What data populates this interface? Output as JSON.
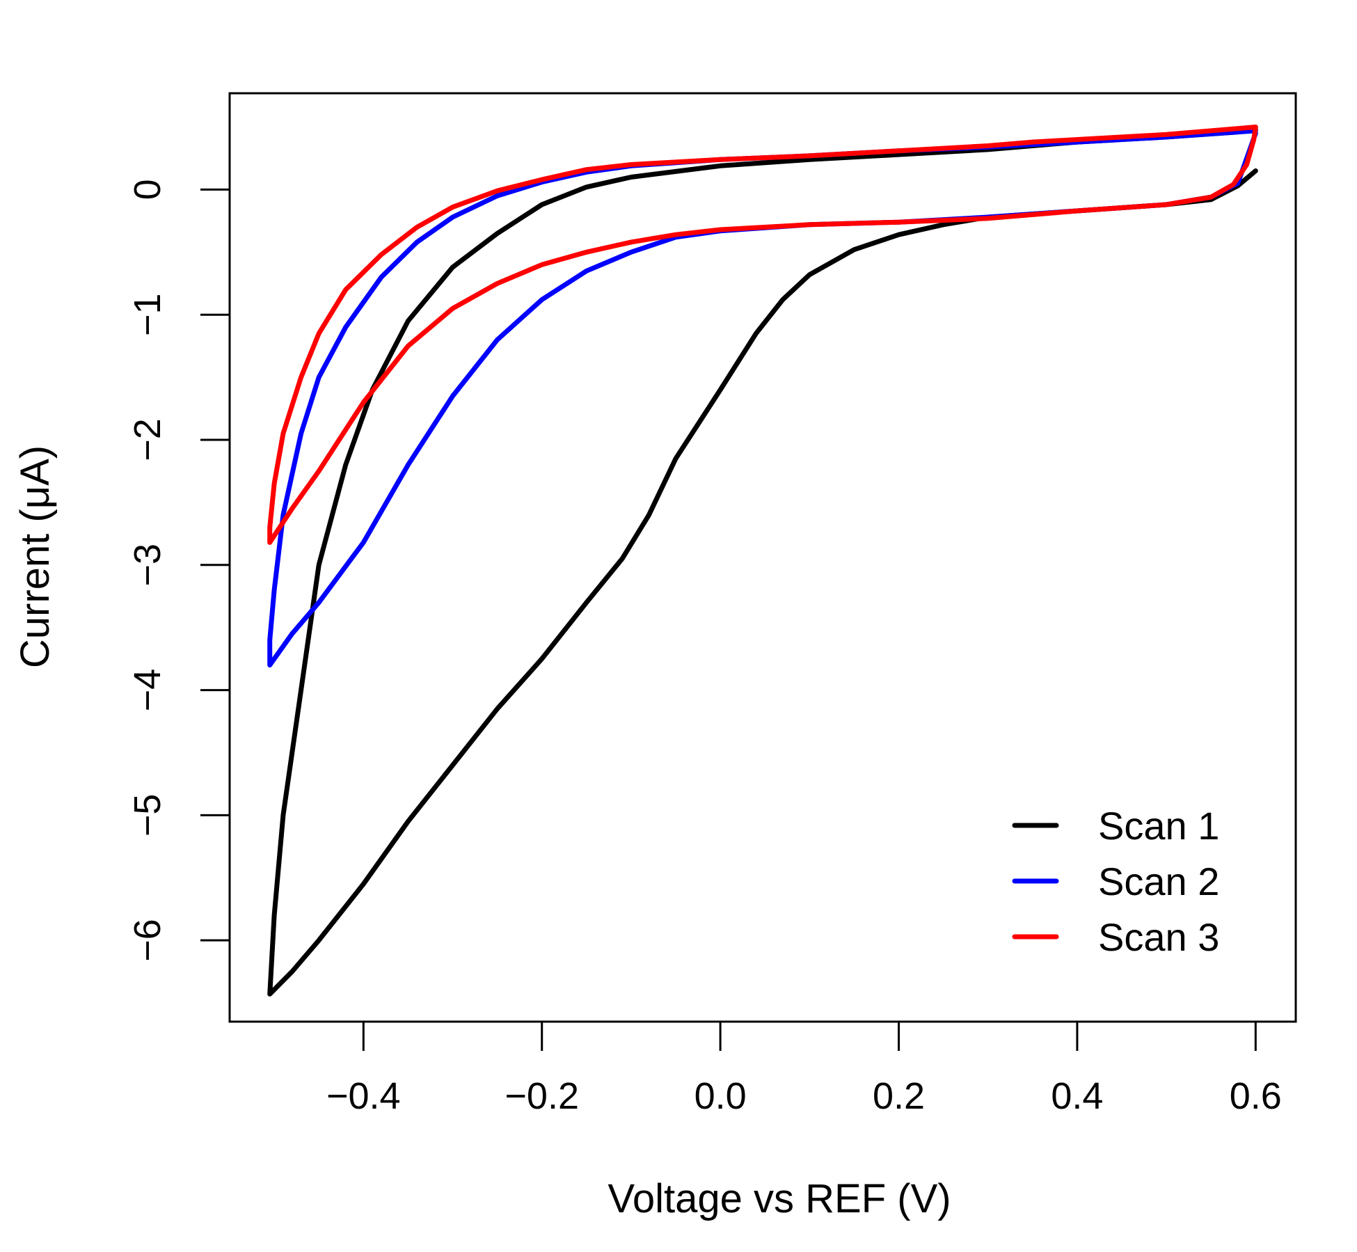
{
  "chart_data": {
    "type": "line",
    "title": "",
    "xlabel": "Voltage vs REF (V)",
    "ylabel": "Current (μA)",
    "xlim": [
      -0.55,
      0.645
    ],
    "ylim": [
      -6.65,
      0.77
    ],
    "x_ticks": [
      -0.4,
      -0.2,
      0.0,
      0.2,
      0.4,
      0.6
    ],
    "x_tick_labels": [
      "−0.4",
      "−0.2",
      "0.0",
      "0.2",
      "0.4",
      "0.6"
    ],
    "y_ticks": [
      0,
      -1,
      -2,
      -3,
      -4,
      -5,
      -6
    ],
    "y_tick_labels": [
      "0",
      "−1",
      "−2",
      "−3",
      "−4",
      "−5",
      "−6"
    ],
    "grid": false,
    "legend_position": "bottom-right",
    "series": [
      {
        "name": "Scan 1",
        "color": "#000000",
        "points": [
          [
            0.6,
            0.15
          ],
          [
            0.58,
            0.03
          ],
          [
            0.55,
            -0.08
          ],
          [
            0.5,
            -0.12
          ],
          [
            0.4,
            -0.17
          ],
          [
            0.3,
            -0.22
          ],
          [
            0.25,
            -0.28
          ],
          [
            0.2,
            -0.36
          ],
          [
            0.15,
            -0.48
          ],
          [
            0.1,
            -0.68
          ],
          [
            0.07,
            -0.88
          ],
          [
            0.04,
            -1.15
          ],
          [
            0.0,
            -1.6
          ],
          [
            -0.05,
            -2.15
          ],
          [
            -0.08,
            -2.6
          ],
          [
            -0.11,
            -2.95
          ],
          [
            -0.15,
            -3.3
          ],
          [
            -0.2,
            -3.75
          ],
          [
            -0.25,
            -4.15
          ],
          [
            -0.3,
            -4.6
          ],
          [
            -0.35,
            -5.05
          ],
          [
            -0.4,
            -5.55
          ],
          [
            -0.45,
            -6.0
          ],
          [
            -0.48,
            -6.25
          ],
          [
            -0.505,
            -6.43
          ],
          [
            -0.5,
            -5.8
          ],
          [
            -0.49,
            -5.0
          ],
          [
            -0.47,
            -4.0
          ],
          [
            -0.45,
            -3.0
          ],
          [
            -0.42,
            -2.2
          ],
          [
            -0.39,
            -1.6
          ],
          [
            -0.35,
            -1.05
          ],
          [
            -0.3,
            -0.62
          ],
          [
            -0.25,
            -0.35
          ],
          [
            -0.2,
            -0.12
          ],
          [
            -0.15,
            0.02
          ],
          [
            -0.1,
            0.1
          ],
          [
            0.0,
            0.19
          ],
          [
            0.1,
            0.24
          ],
          [
            0.2,
            0.28
          ],
          [
            0.3,
            0.32
          ],
          [
            0.4,
            0.38
          ],
          [
            0.5,
            0.42
          ],
          [
            0.58,
            0.46
          ],
          [
            0.6,
            0.48
          ]
        ]
      },
      {
        "name": "Scan 2",
        "color": "#0000ff",
        "points": [
          [
            0.6,
            0.45
          ],
          [
            0.595,
            0.35
          ],
          [
            0.58,
            0.05
          ],
          [
            0.55,
            -0.06
          ],
          [
            0.5,
            -0.12
          ],
          [
            0.4,
            -0.17
          ],
          [
            0.3,
            -0.22
          ],
          [
            0.2,
            -0.26
          ],
          [
            0.1,
            -0.28
          ],
          [
            0.0,
            -0.33
          ],
          [
            -0.05,
            -0.38
          ],
          [
            -0.1,
            -0.5
          ],
          [
            -0.15,
            -0.65
          ],
          [
            -0.2,
            -0.88
          ],
          [
            -0.25,
            -1.2
          ],
          [
            -0.3,
            -1.65
          ],
          [
            -0.35,
            -2.2
          ],
          [
            -0.4,
            -2.82
          ],
          [
            -0.45,
            -3.3
          ],
          [
            -0.48,
            -3.55
          ],
          [
            -0.505,
            -3.8
          ],
          [
            -0.505,
            -3.6
          ],
          [
            -0.5,
            -3.2
          ],
          [
            -0.49,
            -2.6
          ],
          [
            -0.47,
            -1.95
          ],
          [
            -0.45,
            -1.5
          ],
          [
            -0.42,
            -1.1
          ],
          [
            -0.38,
            -0.7
          ],
          [
            -0.34,
            -0.42
          ],
          [
            -0.3,
            -0.22
          ],
          [
            -0.25,
            -0.05
          ],
          [
            -0.2,
            0.06
          ],
          [
            -0.15,
            0.14
          ],
          [
            -0.1,
            0.19
          ],
          [
            0.0,
            0.24
          ],
          [
            0.1,
            0.27
          ],
          [
            0.2,
            0.31
          ],
          [
            0.3,
            0.34
          ],
          [
            0.4,
            0.38
          ],
          [
            0.5,
            0.42
          ],
          [
            0.6,
            0.47
          ]
        ]
      },
      {
        "name": "Scan 3",
        "color": "#ff0000",
        "points": [
          [
            0.6,
            0.5
          ],
          [
            0.598,
            0.4
          ],
          [
            0.59,
            0.2
          ],
          [
            0.575,
            0.04
          ],
          [
            0.55,
            -0.06
          ],
          [
            0.5,
            -0.12
          ],
          [
            0.4,
            -0.17
          ],
          [
            0.3,
            -0.23
          ],
          [
            0.2,
            -0.26
          ],
          [
            0.1,
            -0.28
          ],
          [
            0.0,
            -0.32
          ],
          [
            -0.05,
            -0.36
          ],
          [
            -0.1,
            -0.42
          ],
          [
            -0.15,
            -0.5
          ],
          [
            -0.2,
            -0.6
          ],
          [
            -0.25,
            -0.75
          ],
          [
            -0.3,
            -0.95
          ],
          [
            -0.35,
            -1.25
          ],
          [
            -0.4,
            -1.7
          ],
          [
            -0.45,
            -2.25
          ],
          [
            -0.48,
            -2.55
          ],
          [
            -0.505,
            -2.82
          ],
          [
            -0.505,
            -2.7
          ],
          [
            -0.5,
            -2.35
          ],
          [
            -0.49,
            -1.95
          ],
          [
            -0.47,
            -1.5
          ],
          [
            -0.45,
            -1.15
          ],
          [
            -0.42,
            -0.8
          ],
          [
            -0.38,
            -0.52
          ],
          [
            -0.34,
            -0.3
          ],
          [
            -0.3,
            -0.14
          ],
          [
            -0.25,
            -0.01
          ],
          [
            -0.2,
            0.08
          ],
          [
            -0.15,
            0.16
          ],
          [
            -0.1,
            0.2
          ],
          [
            0.0,
            0.24
          ],
          [
            0.1,
            0.27
          ],
          [
            0.2,
            0.31
          ],
          [
            0.3,
            0.35
          ],
          [
            0.35,
            0.38
          ],
          [
            0.4,
            0.4
          ],
          [
            0.5,
            0.44
          ],
          [
            0.6,
            0.5
          ]
        ]
      }
    ]
  }
}
